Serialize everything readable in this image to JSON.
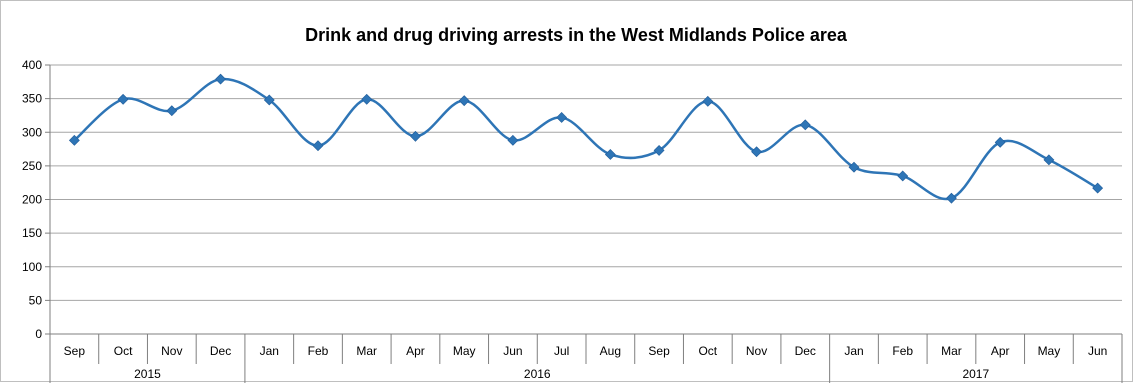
{
  "chart_data": {
    "type": "line",
    "title": "Drink and drug driving arrests in the West Midlands Police area",
    "xlabel": "",
    "ylabel": "",
    "ylim": [
      0,
      400
    ],
    "yticks": [
      "0",
      "50",
      "100",
      "150",
      "200",
      "250",
      "300",
      "350",
      "400"
    ],
    "categories": [
      "Sep",
      "Oct",
      "Nov",
      "Dec",
      "Jan",
      "Feb",
      "Mar",
      "Apr",
      "May",
      "Jun",
      "Jul",
      "Aug",
      "Sep",
      "Oct",
      "Nov",
      "Dec",
      "Jan",
      "Feb",
      "Mar",
      "Apr",
      "May",
      "Jun"
    ],
    "years": [
      {
        "label": "2015",
        "start": 0,
        "end": 3
      },
      {
        "label": "2016",
        "start": 4,
        "end": 15
      },
      {
        "label": "2017",
        "start": 16,
        "end": 21
      }
    ],
    "series": [
      {
        "values": [
          288,
          349,
          332,
          379,
          348,
          280,
          349,
          294,
          347,
          288,
          322,
          267,
          273,
          346,
          271,
          311,
          248,
          235,
          202,
          285,
          259,
          217
        ],
        "color": "#2e75b6"
      }
    ],
    "grid": true,
    "legend": "none"
  }
}
